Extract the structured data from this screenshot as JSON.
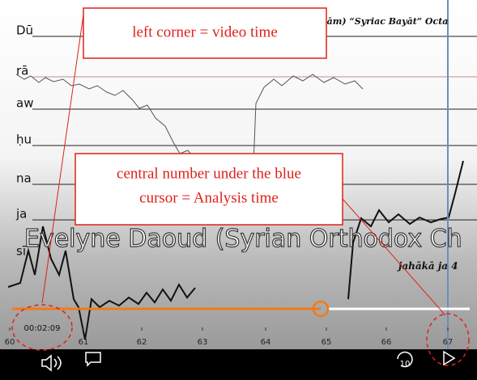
{
  "header": {
    "title": "(maqām) “Syriac Bayāt” Octa"
  },
  "pitch_labels": [
    "Dū",
    "rā",
    "aw",
    "ḥu",
    "na",
    "ja",
    "sī"
  ],
  "overlay": {
    "title": "Evelyne Daoud (Syrian Orthodox Ch",
    "subtitle": "jahākā ja 4"
  },
  "annotations": [
    {
      "lines": [
        "left corner = video time"
      ]
    },
    {
      "lines": [
        "central number under the blue",
        "cursor = Analysis time"
      ]
    }
  ],
  "player": {
    "video_time": "00:02:09",
    "skip_label": "10"
  },
  "time_axis": {
    "ticks": [
      "60",
      "61",
      "62",
      "63",
      "64",
      "65",
      "66",
      "67"
    ]
  }
}
